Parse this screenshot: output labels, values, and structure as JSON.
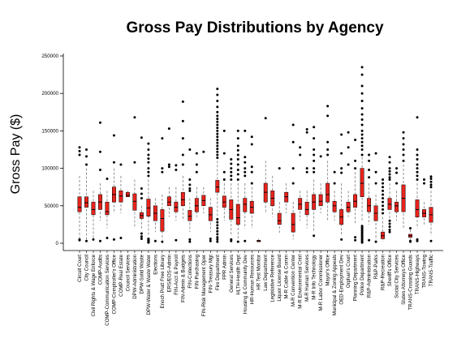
{
  "chart_data": {
    "type": "box",
    "title": "Gross Pay Distributions by Agency",
    "xlabel": "",
    "ylabel": "Gross Pay ($)",
    "ylim": [
      0,
      250000
    ],
    "yticks": [
      0,
      50000,
      100000,
      150000,
      200000,
      250000
    ],
    "ytick_labels": [
      "0",
      "50000",
      "100000",
      "150000",
      "200000",
      "250000"
    ],
    "grid": false,
    "legend": "none",
    "colors": {
      "box_fill": "#e8231c",
      "median_line": "#000000",
      "whisker": "#777777",
      "outlier": "#000000",
      "axis": "#000000"
    },
    "categories": [
      "Circuit Court",
      "City Council",
      "Civil Rights & Wage Enforce",
      "COMP-Audits",
      "COMP-Communication Services",
      "COMP-Comptroller's Office",
      "COMP-Real Estate",
      "Council Services",
      "DPW-Administration",
      "DPW-Solid Waste",
      "DPW-Water & Waste Water",
      "Elections",
      "Enoch Pratt Free Library",
      "ERS/EOS-Admin",
      "FIN-Acct & Payroll",
      "FIN-Admin & Budgets",
      "FIN-Collections",
      "FIN-Purchasing",
      "FIN-Risk Management Oper",
      "FIN-Treasury Mgt",
      "Fire Department",
      "FPR Admin",
      "General Services",
      "HLTH-Health Dept",
      "Housing & Community Dev",
      "HR-Human Resources",
      "HR Test Monitor",
      "Law Department",
      "Legislative Reference",
      "Liquor License Board",
      "M-R Cable & Comm",
      "M-R Convention Center",
      "M-R Environmental Cntrl",
      "M-R Human Services",
      "M-R Info Technology",
      "M-R Labor Commissioner",
      "Mayor's Office",
      "Municipal & Zoning Appeals",
      "OED-Employment Dev",
      "Orphan's Court",
      "Planning Department",
      "Police Department",
      "R&P-Administration",
      "R&P-Parks",
      "R&P-Recreation",
      "Sheriff's Office",
      "Social City Services",
      "States Attorneys Office",
      "TRANS-Crossing Guards",
      "TRANS-Highways",
      "TRANS-Towing",
      "TRANS-Traffic"
    ],
    "boxes": [
      {
        "min": 5000,
        "q1": 42000,
        "median": 48000,
        "q3": 62000,
        "max": 90000,
        "outliers": [
          118000,
          123000,
          128000,
          5000,
          4000
        ]
      },
      {
        "min": 5000,
        "q1": 48000,
        "median": 54000,
        "q3": 62000,
        "max": 100000,
        "outliers": [
          105000,
          116000,
          125000,
          3000
        ]
      },
      {
        "min": 5000,
        "q1": 38000,
        "median": 45000,
        "q3": 55000,
        "max": 70000,
        "outliers": [
          5000
        ]
      },
      {
        "min": 30000,
        "q1": 45000,
        "median": 55000,
        "q3": 65000,
        "max": 80000,
        "outliers": [
          98000,
          122000,
          161000,
          3000
        ]
      },
      {
        "min": 20000,
        "q1": 38000,
        "median": 42000,
        "q3": 55000,
        "max": 70000,
        "outliers": [
          7000,
          86000
        ]
      },
      {
        "min": 40000,
        "q1": 55000,
        "median": 65000,
        "q3": 75000,
        "max": 100000,
        "outliers": [
          108000,
          144000,
          5000
        ]
      },
      {
        "min": 40000,
        "q1": 55000,
        "median": 63000,
        "q3": 70000,
        "max": 90000,
        "outliers": [
          105000,
          7000
        ]
      },
      {
        "min": 60000,
        "q1": 62000,
        "median": 64000,
        "q3": 68000,
        "max": 70000,
        "outliers": []
      },
      {
        "min": 20000,
        "q1": 44000,
        "median": 56000,
        "q3": 66000,
        "max": 85000,
        "outliers": [
          108000,
          168000
        ]
      },
      {
        "min": 18000,
        "q1": 33000,
        "median": 37000,
        "q3": 41000,
        "max": 50000,
        "outliers": [
          6000,
          9000,
          13000,
          60000,
          66000,
          73000,
          141000
        ]
      },
      {
        "min": 10000,
        "q1": 36000,
        "median": 47000,
        "q3": 59000,
        "max": 85000,
        "outliers": [
          1000,
          2000,
          3000,
          4000,
          5000,
          6000,
          90000,
          95000,
          100000,
          108000,
          113000,
          118000,
          125000,
          133000
        ]
      },
      {
        "min": 15000,
        "q1": 30000,
        "median": 40000,
        "q3": 50000,
        "max": 60000,
        "outliers": [
          3000
        ]
      },
      {
        "min": 5000,
        "q1": 16000,
        "median": 33000,
        "q3": 45000,
        "max": 65000,
        "outliers": [
          95000,
          100000,
          140000,
          2000
        ]
      },
      {
        "min": 35000,
        "q1": 50000,
        "median": 55000,
        "q3": 62000,
        "max": 75000,
        "outliers": [
          102000,
          105000,
          153000
        ]
      },
      {
        "min": 30000,
        "q1": 42000,
        "median": 48000,
        "q3": 55000,
        "max": 75000,
        "outliers": [
          98000,
          104000,
          4000
        ]
      },
      {
        "min": 30000,
        "q1": 50000,
        "median": 58000,
        "q3": 68000,
        "max": 90000,
        "outliers": [
          105000,
          118000,
          140000,
          163000,
          189000
        ]
      },
      {
        "min": 15000,
        "q1": 30000,
        "median": 36000,
        "q3": 44000,
        "max": 60000,
        "outliers": [
          2000,
          5000,
          70000,
          73000,
          78000,
          85000,
          125000
        ]
      },
      {
        "min": 35000,
        "q1": 42000,
        "median": 50000,
        "q3": 60000,
        "max": 75000,
        "outliers": [
          95000,
          105000,
          120000
        ]
      },
      {
        "min": 40000,
        "q1": 50000,
        "median": 57000,
        "q3": 64000,
        "max": 75000,
        "outliers": [
          122000
        ]
      },
      {
        "min": 15000,
        "q1": 30000,
        "median": 38000,
        "q3": 48000,
        "max": 60000,
        "outliers": [
          3000,
          6000
        ]
      },
      {
        "min": 35000,
        "q1": 68000,
        "median": 75000,
        "q3": 84000,
        "max": 110000,
        "outliers": [
          2000,
          5000,
          8000,
          12000,
          16000,
          20000,
          24000,
          28000,
          32000,
          114000,
          118000,
          122000,
          126000,
          130000,
          134000,
          138000,
          142000,
          146000,
          150000,
          154000,
          158000,
          162000,
          166000,
          170000,
          175000,
          182000,
          190000,
          198000,
          206000
        ]
      },
      {
        "min": 30000,
        "q1": 48000,
        "median": 55000,
        "q3": 63000,
        "max": 80000,
        "outliers": [
          85000,
          95000,
          120000,
          150000
        ]
      },
      {
        "min": 10000,
        "q1": 32000,
        "median": 45000,
        "q3": 58000,
        "max": 80000,
        "outliers": [
          3000,
          5000,
          85000,
          90000,
          95000,
          100000,
          106000,
          112000
        ]
      },
      {
        "min": 5000,
        "q1": 25000,
        "median": 34000,
        "q3": 52000,
        "max": 80000,
        "outliers": [
          2000,
          85000,
          92000,
          98000,
          105000,
          112000,
          118000,
          124000,
          130000,
          140000,
          150000
        ]
      },
      {
        "min": 20000,
        "q1": 42000,
        "median": 52000,
        "q3": 60000,
        "max": 80000,
        "outliers": [
          3000,
          90000,
          95000,
          100000,
          108000,
          115000,
          150000
        ]
      },
      {
        "min": 20000,
        "q1": 40000,
        "median": 48000,
        "q3": 56000,
        "max": 75000,
        "outliers": [
          80000,
          95000,
          102000,
          132000,
          142000
        ]
      },
      {
        "min": 1000,
        "q1": 2000,
        "median": 3000,
        "q3": 4000,
        "max": 6000,
        "outliers": []
      },
      {
        "min": 40000,
        "q1": 55000,
        "median": 68000,
        "q3": 80000,
        "max": 110000,
        "outliers": [
          167000
        ]
      },
      {
        "min": 35000,
        "q1": 50000,
        "median": 60000,
        "q3": 70000,
        "max": 90000,
        "outliers": []
      },
      {
        "min": 12000,
        "q1": 25000,
        "median": 30000,
        "q3": 40000,
        "max": 55000,
        "outliers": [
          100000
        ]
      },
      {
        "min": 40000,
        "q1": 55000,
        "median": 62000,
        "q3": 68000,
        "max": 80000,
        "outliers": []
      },
      {
        "min": 5000,
        "q1": 15000,
        "median": 25000,
        "q3": 40000,
        "max": 55000,
        "outliers": [
          80000,
          100000,
          135000,
          158000
        ]
      },
      {
        "min": 30000,
        "q1": 45000,
        "median": 52000,
        "q3": 60000,
        "max": 70000,
        "outliers": [
          118000,
          128000
        ]
      },
      {
        "min": 20000,
        "q1": 38000,
        "median": 45000,
        "q3": 55000,
        "max": 70000,
        "outliers": [
          95000,
          100000,
          148000,
          152000
        ]
      },
      {
        "min": 15000,
        "q1": 45000,
        "median": 55000,
        "q3": 65000,
        "max": 85000,
        "outliers": [
          10000,
          95000,
          100000,
          110000,
          118000,
          125000,
          140000,
          155000
        ]
      },
      {
        "min": 40000,
        "q1": 50000,
        "median": 56000,
        "q3": 65000,
        "max": 80000,
        "outliers": [
          116000
        ]
      },
      {
        "min": 30000,
        "q1": 55000,
        "median": 65000,
        "q3": 80000,
        "max": 110000,
        "outliers": [
          118000,
          125000,
          135000,
          170000,
          183000
        ]
      },
      {
        "min": 30000,
        "q1": 42000,
        "median": 50000,
        "q3": 56000,
        "max": 70000,
        "outliers": [
          80000,
          95000
        ]
      },
      {
        "min": 10000,
        "q1": 25000,
        "median": 35000,
        "q3": 45000,
        "max": 80000,
        "outliers": [
          5000,
          94000,
          100000,
          120000,
          145000
        ]
      },
      {
        "min": 35000,
        "q1": 42000,
        "median": 48000,
        "q3": 55000,
        "max": 70000,
        "outliers": [
          105000,
          128000,
          148000
        ]
      },
      {
        "min": 25000,
        "q1": 48000,
        "median": 56000,
        "q3": 65000,
        "max": 95000,
        "outliers": [
          100000,
          110000,
          138000,
          4000,
          8000
        ]
      },
      {
        "min": 30000,
        "q1": 62000,
        "median": 80000,
        "q3": 100000,
        "max": 115000,
        "outliers": [
          1000,
          3000,
          5000,
          7000,
          9000,
          11000,
          13000,
          15000,
          17000,
          19000,
          21000,
          23000,
          118000,
          125000,
          130000,
          135000,
          140000,
          145000,
          150000,
          158000,
          165000,
          172000,
          180000,
          190000,
          200000,
          210000,
          225000,
          235000
        ]
      },
      {
        "min": 25000,
        "q1": 42000,
        "median": 50000,
        "q3": 60000,
        "max": 80000,
        "outliers": [
          88000,
          98000,
          110000,
          118000,
          4000
        ]
      },
      {
        "min": 5000,
        "q1": 30000,
        "median": 40000,
        "q3": 50000,
        "max": 65000,
        "outliers": [
          2000,
          80000,
          95000,
          120000
        ]
      },
      {
        "min": 2000,
        "q1": 6000,
        "median": 10000,
        "q3": 15000,
        "max": 35000,
        "outliers": [
          40000,
          45000,
          50000,
          55000,
          60000,
          65000,
          70000,
          75000,
          80000,
          85000
        ]
      },
      {
        "min": 30000,
        "q1": 45000,
        "median": 52000,
        "q3": 60000,
        "max": 80000,
        "outliers": [
          15000,
          18000,
          22000,
          26000,
          30000,
          85000,
          88000,
          92000,
          96000,
          100000,
          108000,
          115000
        ]
      },
      {
        "min": 30000,
        "q1": 42000,
        "median": 50000,
        "q3": 55000,
        "max": 70000,
        "outliers": [
          80000,
          94000,
          100000
        ]
      },
      {
        "min": 20000,
        "q1": 42000,
        "median": 60000,
        "q3": 78000,
        "max": 105000,
        "outliers": [
          110000,
          118000,
          125000,
          132000,
          140000,
          148000
        ]
      },
      {
        "min": 5000,
        "q1": 8000,
        "median": 10000,
        "q3": 12000,
        "max": 18000,
        "outliers": [
          2000,
          3000,
          20000
        ]
      },
      {
        "min": 20000,
        "q1": 35000,
        "median": 45000,
        "q3": 58000,
        "max": 80000,
        "outliers": [
          3000,
          5000,
          85000,
          90000,
          95000,
          100000,
          105000,
          112000,
          118000,
          125000,
          168000
        ]
      },
      {
        "min": 25000,
        "q1": 35000,
        "median": 40000,
        "q3": 45000,
        "max": 55000,
        "outliers": [
          80000,
          85000
        ]
      },
      {
        "min": 10000,
        "q1": 28000,
        "median": 38000,
        "q3": 48000,
        "max": 70000,
        "outliers": [
          3000,
          75000,
          78000,
          82000,
          86000,
          89000
        ]
      }
    ]
  }
}
